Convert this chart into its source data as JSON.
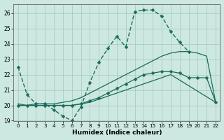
{
  "xlabel": "Humidex (Indice chaleur)",
  "bg_color": "#cce8e0",
  "grid_color": "#aaccc4",
  "line_color": "#1a6b5a",
  "xlim": [
    -0.5,
    22.5
  ],
  "ylim": [
    19,
    26.6
  ],
  "yticks": [
    19,
    20,
    21,
    22,
    23,
    24,
    25,
    26
  ],
  "xticks": [
    0,
    1,
    2,
    3,
    4,
    5,
    6,
    7,
    8,
    9,
    10,
    11,
    12,
    13,
    14,
    15,
    16,
    17,
    18,
    19,
    20,
    21,
    22
  ],
  "lines": [
    {
      "x": [
        0,
        1,
        2,
        3,
        4,
        5,
        6,
        7,
        8,
        9,
        10,
        11,
        12,
        13,
        14,
        15,
        16,
        17,
        18,
        19
      ],
      "y": [
        22.5,
        20.7,
        20.1,
        20.1,
        19.7,
        19.3,
        19.0,
        19.9,
        21.5,
        22.8,
        23.7,
        24.5,
        23.8,
        26.1,
        26.2,
        26.2,
        25.8,
        24.8,
        24.1,
        23.5
      ],
      "marker": "D",
      "markersize": 2.5,
      "linewidth": 1.0,
      "dashes": [
        4,
        2
      ]
    },
    {
      "x": [
        0,
        1,
        2,
        3,
        4,
        5,
        6,
        7,
        8,
        9,
        10,
        11,
        12,
        13,
        14,
        15,
        16,
        17,
        22
      ],
      "y": [
        20.0,
        20.0,
        20.0,
        20.0,
        20.0,
        20.0,
        20.0,
        20.1,
        20.2,
        20.4,
        20.6,
        20.8,
        21.0,
        21.2,
        21.4,
        21.6,
        21.8,
        22.0,
        20.2
      ],
      "marker": null,
      "markersize": 0,
      "linewidth": 0.9,
      "dashes": []
    },
    {
      "x": [
        0,
        1,
        2,
        3,
        4,
        5,
        6,
        7,
        8,
        9,
        10,
        11,
        12,
        13,
        14,
        15,
        16,
        17,
        18,
        19,
        20,
        21,
        22
      ],
      "y": [
        20.0,
        20.0,
        20.0,
        20.0,
        20.0,
        20.0,
        20.0,
        20.1,
        20.3,
        20.5,
        20.8,
        21.1,
        21.4,
        21.7,
        22.0,
        22.1,
        22.2,
        22.2,
        22.1,
        21.8,
        21.8,
        21.8,
        20.2
      ],
      "marker": "D",
      "markersize": 2.5,
      "linewidth": 0.9,
      "dashes": []
    },
    {
      "x": [
        0,
        1,
        2,
        3,
        4,
        5,
        6,
        7,
        8,
        9,
        10,
        11,
        12,
        13,
        14,
        15,
        16,
        17,
        18,
        19,
        20,
        21,
        22
      ],
      "y": [
        20.1,
        20.0,
        20.1,
        20.1,
        20.1,
        20.2,
        20.3,
        20.5,
        20.8,
        21.1,
        21.4,
        21.7,
        22.0,
        22.3,
        22.6,
        22.9,
        23.2,
        23.4,
        23.5,
        23.5,
        23.4,
        23.2,
        20.2
      ],
      "marker": null,
      "markersize": 0,
      "linewidth": 0.9,
      "dashes": []
    }
  ]
}
